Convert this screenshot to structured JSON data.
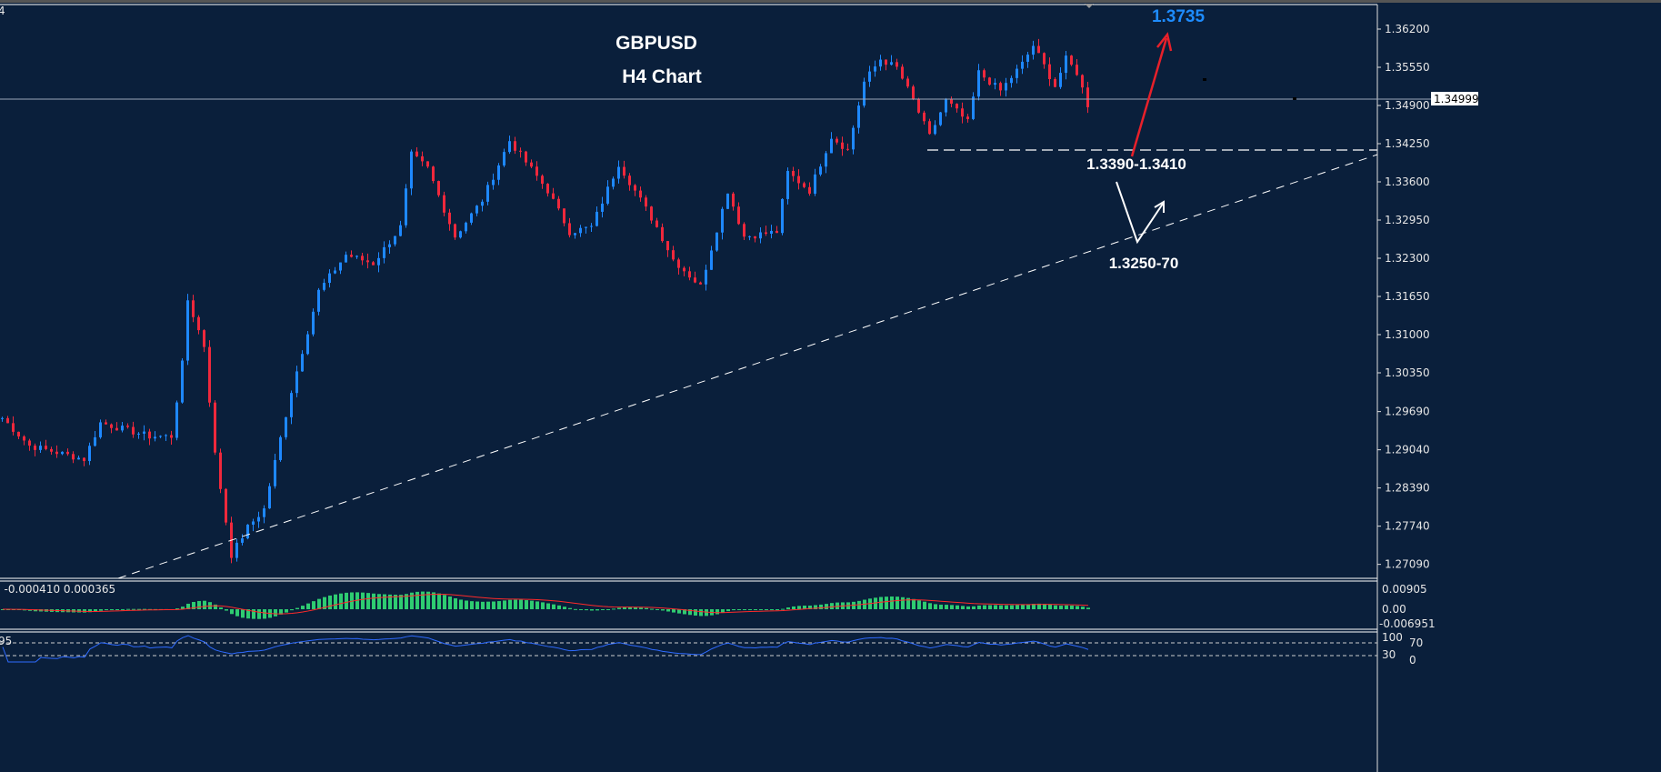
{
  "chart_data": {
    "type": "candlestick",
    "symbol": "GBPUSD",
    "timeframe_label": "H4 Chart",
    "price_axis_ticks": [
      "1.36200",
      "1.35550",
      "1.34900",
      "1.34250",
      "1.33600",
      "1.32950",
      "1.32300",
      "1.31650",
      "1.31000",
      "1.30350",
      "1.29690",
      "1.29040",
      "1.28390",
      "1.27740",
      "1.27090"
    ],
    "ylim": [
      1.268,
      1.365
    ],
    "current_price": "1.34999",
    "close_path": [
      [
        0,
        1.2958
      ],
      [
        5,
        1.2911
      ],
      [
        15,
        1.2888
      ],
      [
        18,
        1.295
      ],
      [
        27,
        1.2927
      ],
      [
        31,
        1.2927
      ],
      [
        33,
        1.305
      ],
      [
        34,
        1.3159
      ],
      [
        37,
        1.3081
      ],
      [
        39,
        1.2896
      ],
      [
        42,
        1.2725
      ],
      [
        45,
        1.2772
      ],
      [
        48,
        1.2803
      ],
      [
        53,
        1.3004
      ],
      [
        58,
        1.3174
      ],
      [
        63,
        1.3236
      ],
      [
        68,
        1.3221
      ],
      [
        73,
        1.3283
      ],
      [
        75,
        1.3406
      ],
      [
        78,
        1.3383
      ],
      [
        83,
        1.3267
      ],
      [
        88,
        1.3329
      ],
      [
        93,
        1.343
      ],
      [
        100,
        1.3345
      ],
      [
        104,
        1.3275
      ],
      [
        108,
        1.3283
      ],
      [
        113,
        1.3391
      ],
      [
        120,
        1.3283
      ],
      [
        123,
        1.3228
      ],
      [
        128,
        1.3182
      ],
      [
        133,
        1.3345
      ],
      [
        136,
        1.3267
      ],
      [
        142,
        1.3275
      ],
      [
        144,
        1.3376
      ],
      [
        148,
        1.3345
      ],
      [
        152,
        1.3437
      ],
      [
        155,
        1.3414
      ],
      [
        158,
        1.353
      ],
      [
        161,
        1.3569
      ],
      [
        164,
        1.3554
      ],
      [
        167,
        1.3499
      ],
      [
        170,
        1.3437
      ],
      [
        173,
        1.3499
      ],
      [
        177,
        1.3461
      ],
      [
        179,
        1.3546
      ],
      [
        183,
        1.3515
      ],
      [
        187,
        1.3561
      ],
      [
        189,
        1.3592
      ],
      [
        193,
        1.3523
      ],
      [
        195,
        1.3569
      ],
      [
        197,
        1.3546
      ],
      [
        199,
        1.3491
      ]
    ],
    "colors": {
      "up": "#1e88ff",
      "down": "#f0283c",
      "background": "#0a1f3b",
      "macd_hist": "#2ecc71",
      "macd_signal": "#ff2a2a",
      "rsi": "#2f6bff"
    },
    "annotations": {
      "target": "1.3735",
      "support_zone": "1.3390-1.3410",
      "trendline_support": "1.3250-70"
    },
    "macd": {
      "label": ") -0.000410 0.000365",
      "ticks": [
        "0.00905",
        "0.00",
        "-0.006951"
      ]
    },
    "rsi": {
      "label": "95",
      "ticks": [
        "100",
        "70",
        "30",
        "0"
      ]
    }
  },
  "window": {
    "corner_label": "4"
  }
}
